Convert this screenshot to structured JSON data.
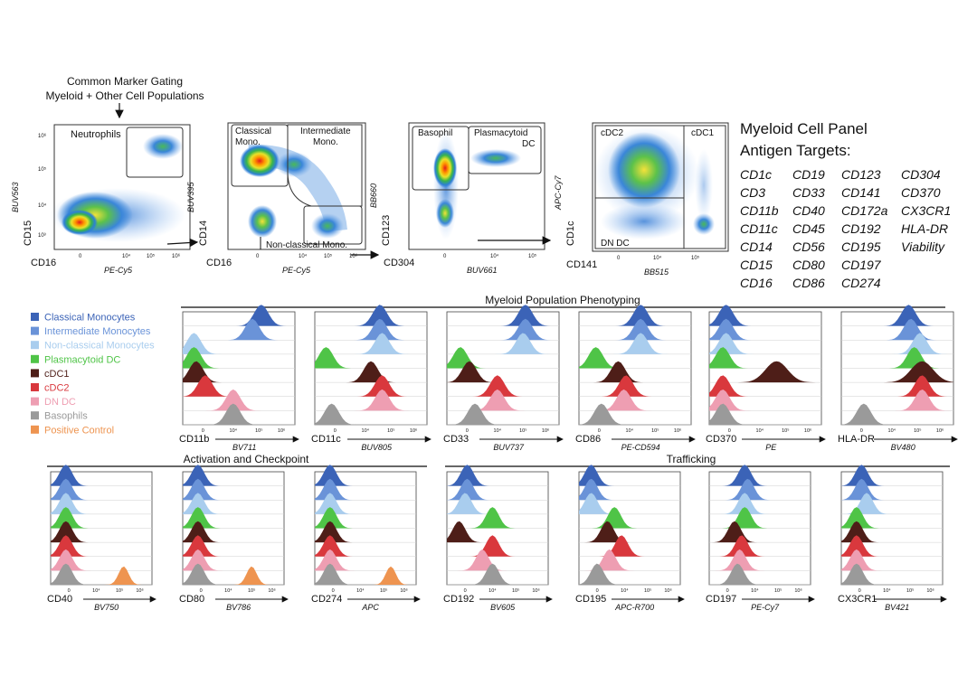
{
  "gating": {
    "caption_line1": "Common Marker Gating",
    "caption_line2": "Myeloid + Other Cell Populations",
    "plots": [
      {
        "y_label": "CD15",
        "y_fluor": "BUV563",
        "x_label": "CD16",
        "x_fluor": "PE-Cy5",
        "gates": [
          "Neutrophils"
        ]
      },
      {
        "y_label": "CD14",
        "y_fluor": "BUV395",
        "x_label": "CD16",
        "x_fluor": "PE-Cy5",
        "gates": [
          "Classical",
          "Mono.",
          "Intermediate",
          "Mono.",
          "Non-classical Mono."
        ]
      },
      {
        "y_label": "CD123",
        "y_fluor": "BB660",
        "x_label": "CD304",
        "x_fluor": "BUV661",
        "gates": [
          "Basophil",
          "Plasmacytoid",
          "DC"
        ]
      },
      {
        "y_label": "CD1c",
        "y_fluor": "APC-Cy7",
        "x_label": "CD141",
        "x_fluor": "BB515",
        "gates": [
          "cDC2",
          "cDC1",
          "DN DC"
        ]
      }
    ],
    "tick_labels": [
      "0",
      "10³",
      "10⁴",
      "10⁵",
      "10⁶"
    ]
  },
  "panel": {
    "title_line1": "Myeloid Cell Panel",
    "title_line2": "Antigen Targets:",
    "columns": [
      [
        "CD1c",
        "CD3",
        "CD11b",
        "CD11c",
        "CD14",
        "CD15",
        "CD16"
      ],
      [
        "CD19",
        "CD33",
        "CD40",
        "CD45",
        "CD56",
        "CD80",
        "CD86"
      ],
      [
        "CD123",
        "CD141",
        "CD172a",
        "CD192",
        "CD195",
        "CD197",
        "CD274"
      ],
      [
        "CD304",
        "CD370",
        "CX3CR1",
        "HLA-DR",
        "Viability"
      ]
    ]
  },
  "legend": [
    {
      "label": "Classical Monocytes",
      "color": "#3b63b7"
    },
    {
      "label": "Intermediate Monocytes",
      "color": "#6a93d8"
    },
    {
      "label": "Non-classical Monocytes",
      "color": "#a9cdee"
    },
    {
      "label": "Plasmacytoid DC",
      "color": "#4fc447"
    },
    {
      "label": "cDC1",
      "color": "#4e1e18"
    },
    {
      "label": "cDC2",
      "color": "#d9383d"
    },
    {
      "label": "DN DC",
      "color": "#ee9eb2"
    },
    {
      "label": "Basophils",
      "color": "#9a9a9a"
    },
    {
      "label": "Positive Control",
      "color": "#ee9450"
    }
  ],
  "sections": {
    "phenotyping": "Myeloid Population Phenotyping",
    "activation": "Activation and Checkpoint",
    "trafficking": "Trafficking"
  },
  "histograms_row1": [
    {
      "marker": "CD11b",
      "fluor": "BV711",
      "peaks": [
        0.7,
        0.62,
        0.1,
        0.1,
        0.12,
        0.2,
        0.45,
        0.45
      ]
    },
    {
      "marker": "CD11c",
      "fluor": "BUV805",
      "peaks": [
        0.58,
        0.58,
        0.6,
        0.1,
        0.5,
        0.6,
        0.6,
        0.15
      ]
    },
    {
      "marker": "CD33",
      "fluor": "BUV737",
      "peaks": [
        0.7,
        0.7,
        0.68,
        0.12,
        0.2,
        0.45,
        0.45,
        0.25
      ]
    },
    {
      "marker": "CD86",
      "fluor": "PE-CD594",
      "peaks": [
        0.55,
        0.55,
        0.55,
        0.15,
        0.35,
        0.42,
        0.4,
        0.2
      ]
    },
    {
      "marker": "CD370",
      "fluor": "PE",
      "peaks": [
        0.15,
        0.15,
        0.15,
        0.12,
        0.6,
        0.12,
        0.12,
        0.12
      ]
    },
    {
      "marker": "HLA-DR",
      "fluor": "BV480",
      "peaks": [
        0.6,
        0.62,
        0.7,
        0.65,
        0.72,
        0.72,
        0.72,
        0.2
      ]
    }
  ],
  "histograms_row2": [
    {
      "marker": "CD40",
      "fluor": "BV750",
      "peaks": [
        0.15,
        0.15,
        0.15,
        0.15,
        0.15,
        0.15,
        0.15,
        0.15
      ],
      "control": 0.72
    },
    {
      "marker": "CD80",
      "fluor": "BV786",
      "peaks": [
        0.15,
        0.15,
        0.15,
        0.15,
        0.15,
        0.15,
        0.15,
        0.15
      ],
      "control": 0.68
    },
    {
      "marker": "CD274",
      "fluor": "APC",
      "peaks": [
        0.15,
        0.15,
        0.15,
        0.15,
        0.15,
        0.15,
        0.15,
        0.15
      ],
      "control": 0.75
    },
    {
      "marker": "CD192",
      "fluor": "BV605",
      "peaks": [
        0.2,
        0.2,
        0.18,
        0.45,
        0.12,
        0.45,
        0.35,
        0.45
      ]
    },
    {
      "marker": "CD195",
      "fluor": "APC-R700",
      "peaks": [
        0.12,
        0.12,
        0.12,
        0.35,
        0.28,
        0.42,
        0.3,
        0.18
      ]
    },
    {
      "marker": "CD197",
      "fluor": "PE-Cy7",
      "peaks": [
        0.35,
        0.38,
        0.35,
        0.35,
        0.25,
        0.32,
        0.3,
        0.28
      ]
    },
    {
      "marker": "CX3CR1",
      "fluor": "BV421",
      "peaks": [
        0.2,
        0.2,
        0.25,
        0.15,
        0.15,
        0.15,
        0.15,
        0.15
      ]
    }
  ]
}
